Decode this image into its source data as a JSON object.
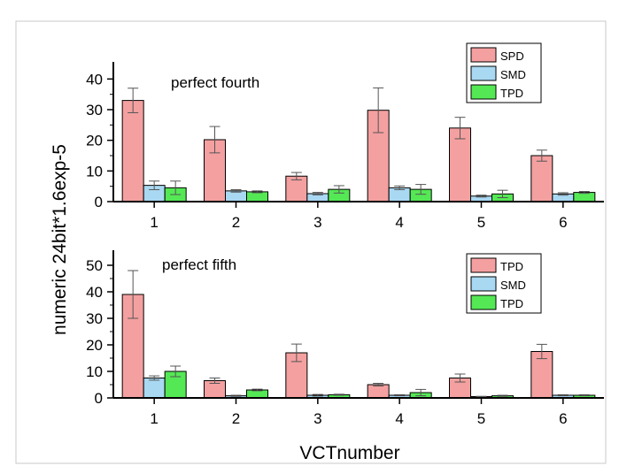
{
  "colors": {
    "series": [
      "#f4a0a0",
      "#a9d8f2",
      "#55e855"
    ],
    "stroke": "#000000",
    "frame": "#c8c8c8"
  },
  "chart_data": [
    {
      "type": "bar",
      "title": "perfect fourth",
      "xlabel": "VCTnumber",
      "ylabel": "numeric 24bit*1.6exp-5",
      "ylim": [
        0,
        45
      ],
      "yticks": [
        0,
        10,
        20,
        30,
        40
      ],
      "categories": [
        "1",
        "2",
        "3",
        "4",
        "5",
        "6"
      ],
      "legend_position": "top-right",
      "series": [
        {
          "name": "SPD",
          "values": [
            33,
            20.2,
            8.3,
            29.8,
            24,
            15
          ],
          "errors": [
            4,
            4.3,
            1.2,
            7.3,
            3.5,
            1.8
          ]
        },
        {
          "name": "SMD",
          "values": [
            5.3,
            3.5,
            2.6,
            4.5,
            1.8,
            2.5
          ],
          "errors": [
            1.4,
            0.4,
            0.4,
            0.6,
            0.3,
            0.4
          ]
        },
        {
          "name": "TPD",
          "values": [
            4.5,
            3.2,
            4,
            4,
            2.5,
            3
          ],
          "errors": [
            2.2,
            0.3,
            1.2,
            1.6,
            1.2,
            0.3
          ]
        }
      ]
    },
    {
      "type": "bar",
      "title": "perfect fifth",
      "xlabel": "VCTnumber",
      "ylabel": "numeric 24bit*1.6exp-5",
      "ylim": [
        0,
        55
      ],
      "yticks": [
        0,
        10,
        20,
        30,
        40,
        50
      ],
      "categories": [
        "1",
        "2",
        "3",
        "4",
        "5",
        "6"
      ],
      "legend_position": "top-right",
      "series": [
        {
          "name": "TPD",
          "values": [
            39,
            6.5,
            17,
            5,
            7.5,
            17.5
          ],
          "errors": [
            9,
            1,
            3.3,
            0.5,
            1.5,
            2.7
          ]
        },
        {
          "name": "SMD",
          "values": [
            7.5,
            0.8,
            1,
            1,
            0.5,
            1
          ],
          "errors": [
            0.8,
            0.2,
            0.3,
            0.2,
            0.1,
            0.2
          ]
        },
        {
          "name": "TPD",
          "values": [
            10,
            3,
            1.2,
            2,
            0.8,
            1
          ],
          "errors": [
            2,
            0.3,
            0.2,
            1.2,
            0.2,
            0.2
          ]
        }
      ]
    }
  ]
}
